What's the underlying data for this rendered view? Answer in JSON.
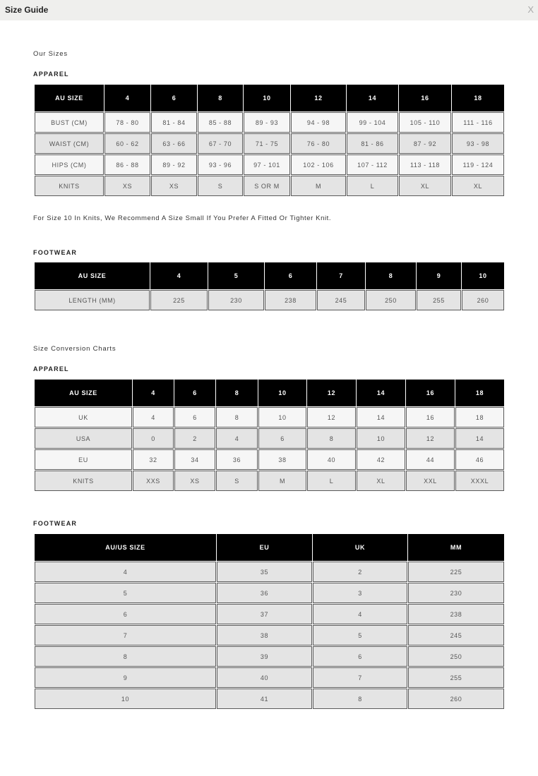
{
  "window": {
    "title": "Size Guide",
    "close_label": "X"
  },
  "our_sizes": {
    "heading": "Our Sizes",
    "apparel": {
      "heading": "APPAREL",
      "header": [
        "AU SIZE",
        "4",
        "6",
        "8",
        "10",
        "12",
        "14",
        "16",
        "18"
      ],
      "rows": [
        [
          "BUST (CM)",
          "78 - 80",
          "81 - 84",
          "85 - 88",
          "89 - 93",
          "94 - 98",
          "99 - 104",
          "105 - 110",
          "111 - 116"
        ],
        [
          "WAIST (CM)",
          "60 - 62",
          "63 - 66",
          "67 - 70",
          "71 - 75",
          "76 - 80",
          "81 - 86",
          "87 - 92",
          "93 - 98"
        ],
        [
          "HIPS (CM)",
          "86 - 88",
          "89 - 92",
          "93 - 96",
          "97 - 101",
          "102 - 106",
          "107 - 112",
          "113 - 118",
          "119 - 124"
        ],
        [
          "KNITS",
          "XS",
          "XS",
          "S",
          "S OR M",
          "M",
          "L",
          "XL",
          "XL"
        ]
      ],
      "note": "For Size 10 In Knits, We Recommend A Size Small If You Prefer A Fitted Or Tighter Knit."
    },
    "footwear": {
      "heading": "FOOTWEAR",
      "header": [
        "AU SIZE",
        "4",
        "5",
        "6",
        "7",
        "8",
        "9",
        "10"
      ],
      "rows": [
        [
          "LENGTH (MM)",
          "225",
          "230",
          "238",
          "245",
          "250",
          "255",
          "260"
        ]
      ]
    }
  },
  "conversion": {
    "heading": "Size Conversion Charts",
    "apparel": {
      "heading": "APPAREL",
      "header": [
        "AU SIZE",
        "4",
        "6",
        "8",
        "10",
        "12",
        "14",
        "16",
        "18"
      ],
      "rows": [
        [
          "UK",
          "4",
          "6",
          "8",
          "10",
          "12",
          "14",
          "16",
          "18"
        ],
        [
          "USA",
          "0",
          "2",
          "4",
          "6",
          "8",
          "10",
          "12",
          "14"
        ],
        [
          "EU",
          "32",
          "34",
          "36",
          "38",
          "40",
          "42",
          "44",
          "46"
        ],
        [
          "KNITS",
          "XXS",
          "XS",
          "S",
          "M",
          "L",
          "XL",
          "XXL",
          "XXXL"
        ]
      ]
    },
    "footwear": {
      "heading": "FOOTWEAR",
      "header": [
        "AU/US SIZE",
        "EU",
        "UK",
        "MM"
      ],
      "rows": [
        [
          "4",
          "35",
          "2",
          "225"
        ],
        [
          "5",
          "36",
          "3",
          "230"
        ],
        [
          "6",
          "37",
          "4",
          "238"
        ],
        [
          "7",
          "38",
          "5",
          "245"
        ],
        [
          "8",
          "39",
          "6",
          "250"
        ],
        [
          "9",
          "40",
          "7",
          "255"
        ],
        [
          "10",
          "41",
          "8",
          "260"
        ]
      ]
    }
  }
}
